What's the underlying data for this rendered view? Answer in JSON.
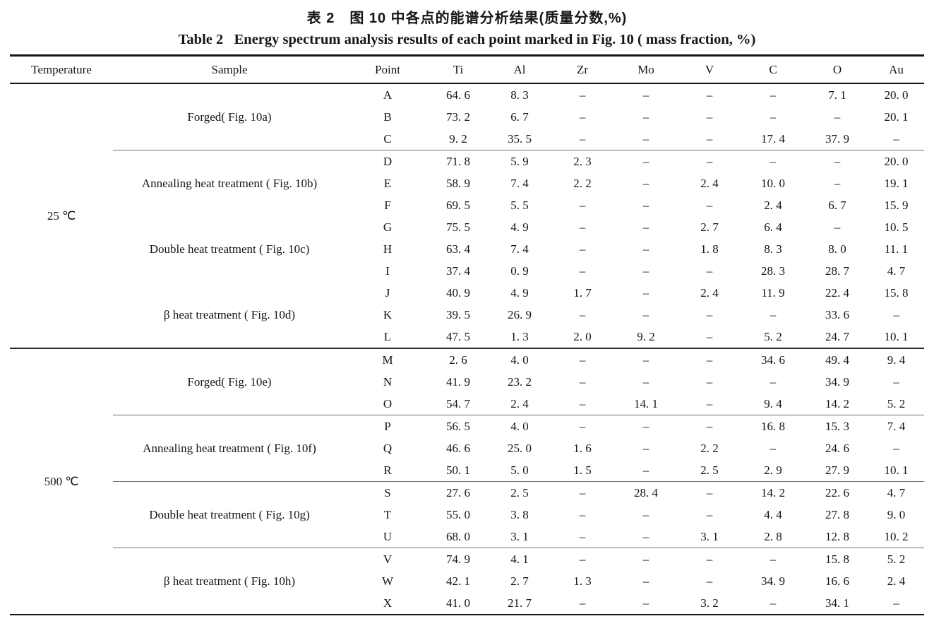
{
  "title_zh": "表 2　图 10 中各点的能谱分析结果(质量分数,%)",
  "title_en": "Table 2   Energy spectrum analysis results of each point marked in Fig. 10 ( mass fraction, %)",
  "columns": [
    "Temperature",
    "Sample",
    "Point",
    "Ti",
    "Al",
    "Zr",
    "Mo",
    "V",
    "C",
    "O",
    "Au"
  ],
  "sections": [
    {
      "temperature": "25 ℃",
      "divider_after": true,
      "groups": [
        {
          "sample": "Forged( Fig. 10a)",
          "rule": "thin",
          "rows": [
            {
              "point": "A",
              "values": [
                "64. 6",
                "8. 3",
                "–",
                "–",
                "–",
                "–",
                "7. 1",
                "20. 0"
              ]
            },
            {
              "point": "B",
              "values": [
                "73. 2",
                "6. 7",
                "–",
                "–",
                "–",
                "–",
                "–",
                "20. 1"
              ]
            },
            {
              "point": "C",
              "values": [
                "9. 2",
                "35. 5",
                "–",
                "–",
                "–",
                "17. 4",
                "37. 9",
                "–"
              ]
            }
          ]
        },
        {
          "sample": "Annealing heat treatment ( Fig. 10b)",
          "rule": "none",
          "rows": [
            {
              "point": "D",
              "values": [
                "71. 8",
                "5. 9",
                "2. 3",
                "–",
                "–",
                "–",
                "–",
                "20. 0"
              ]
            },
            {
              "point": "E",
              "values": [
                "58. 9",
                "7. 4",
                "2. 2",
                "–",
                "2. 4",
                "10. 0",
                "–",
                "19. 1"
              ]
            },
            {
              "point": "F",
              "values": [
                "69. 5",
                "5. 5",
                "–",
                "–",
                "–",
                "2. 4",
                "6. 7",
                "15. 9"
              ]
            }
          ]
        },
        {
          "sample": "Double heat treatment ( Fig. 10c)",
          "rule": "none",
          "rows": [
            {
              "point": "G",
              "values": [
                "75. 5",
                "4. 9",
                "–",
                "–",
                "2. 7",
                "6. 4",
                "–",
                "10. 5"
              ]
            },
            {
              "point": "H",
              "values": [
                "63. 4",
                "7. 4",
                "–",
                "–",
                "1. 8",
                "8. 3",
                "8. 0",
                "11. 1"
              ]
            },
            {
              "point": "I",
              "values": [
                "37. 4",
                "0. 9",
                "–",
                "–",
                "–",
                "28. 3",
                "28. 7",
                "4. 7"
              ]
            }
          ]
        },
        {
          "sample": "β heat treatment ( Fig. 10d)",
          "rule": "thick",
          "rows": [
            {
              "point": "J",
              "values": [
                "40. 9",
                "4. 9",
                "1. 7",
                "–",
                "2. 4",
                "11. 9",
                "22. 4",
                "15. 8"
              ]
            },
            {
              "point": "K",
              "values": [
                "39. 5",
                "26. 9",
                "–",
                "–",
                "–",
                "–",
                "33. 6",
                "–"
              ]
            },
            {
              "point": "L",
              "values": [
                "47. 5",
                "1. 3",
                "2. 0",
                "9. 2",
                "–",
                "5. 2",
                "24. 7",
                "10. 1"
              ]
            }
          ]
        }
      ]
    },
    {
      "temperature": "500 ℃",
      "divider_after": false,
      "groups": [
        {
          "sample": "Forged( Fig. 10e)",
          "rule": "thin",
          "rows": [
            {
              "point": "M",
              "values": [
                "2. 6",
                "4. 0",
                "–",
                "–",
                "–",
                "34. 6",
                "49. 4",
                "9. 4"
              ]
            },
            {
              "point": "N",
              "values": [
                "41. 9",
                "23. 2",
                "–",
                "–",
                "–",
                "–",
                "34. 9",
                "–"
              ]
            },
            {
              "point": "O",
              "values": [
                "54. 7",
                "2. 4",
                "–",
                "14. 1",
                "–",
                "9. 4",
                "14. 2",
                "5. 2"
              ]
            }
          ]
        },
        {
          "sample": "Annealing heat treatment ( Fig. 10f)",
          "rule": "thin",
          "rows": [
            {
              "point": "P",
              "values": [
                "56. 5",
                "4. 0",
                "–",
                "–",
                "–",
                "16. 8",
                "15. 3",
                "7. 4"
              ]
            },
            {
              "point": "Q",
              "values": [
                "46. 6",
                "25. 0",
                "1. 6",
                "–",
                "2. 2",
                "–",
                "24. 6",
                "–"
              ]
            },
            {
              "point": "R",
              "values": [
                "50. 1",
                "5. 0",
                "1. 5",
                "–",
                "2. 5",
                "2. 9",
                "27. 9",
                "10. 1"
              ]
            }
          ]
        },
        {
          "sample": "Double heat treatment ( Fig. 10g)",
          "rule": "thin",
          "rows": [
            {
              "point": "S",
              "values": [
                "27. 6",
                "2. 5",
                "–",
                "28. 4",
                "–",
                "14. 2",
                "22. 6",
                "4. 7"
              ]
            },
            {
              "point": "T",
              "values": [
                "55. 0",
                "3. 8",
                "–",
                "–",
                "–",
                "4. 4",
                "27. 8",
                "9. 0"
              ]
            },
            {
              "point": "U",
              "values": [
                "68. 0",
                "3. 1",
                "–",
                "–",
                "3. 1",
                "2. 8",
                "12. 8",
                "10. 2"
              ]
            }
          ]
        },
        {
          "sample": "β heat treatment ( Fig. 10h)",
          "rule": "none",
          "rows": [
            {
              "point": "V",
              "values": [
                "74. 9",
                "4. 1",
                "–",
                "–",
                "–",
                "–",
                "15. 8",
                "5. 2"
              ]
            },
            {
              "point": "W",
              "values": [
                "42. 1",
                "2. 7",
                "1. 3",
                "–",
                "–",
                "34. 9",
                "16. 6",
                "2. 4"
              ]
            },
            {
              "point": "X",
              "values": [
                "41. 0",
                "21. 7",
                "–",
                "–",
                "3. 2",
                "–",
                "34. 1",
                "–"
              ]
            }
          ]
        }
      ]
    }
  ]
}
